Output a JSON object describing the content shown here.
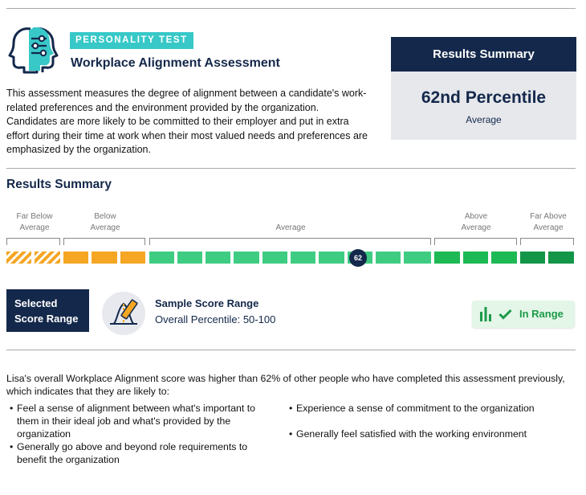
{
  "header": {
    "badge": "PERSONALITY TEST",
    "title": "Workplace Alignment Assessment",
    "description": "This assessment measures the degree of alignment between a candidate's work-related preferences and the environment provided by the organization. Candidates are more likely to be committed to their employer and put in extra effort during their time at work when their most valued needs and preferences are emphasized by the organization."
  },
  "summary": {
    "header": "Results Summary",
    "percentile": "62nd Percentile",
    "level": "Average"
  },
  "results": {
    "title": "Results Summary",
    "categories": {
      "far_below_1": "Far Below",
      "far_below_2": "Average",
      "below_1": "Below",
      "below_2": "Average",
      "average": "Average",
      "above_1": "Above",
      "above_2": "Average",
      "far_above_1": "Far Above",
      "far_above_2": "Average"
    },
    "score": "62"
  },
  "selected_range": {
    "label_line1": "Selected",
    "label_line2": "Score Range",
    "title": "Sample Score Range",
    "subtitle": "Overall Percentile: 50-100",
    "status": "In Range"
  },
  "details": {
    "paragraph": "Lisa's overall Workplace Alignment score was higher than 62% of other people who have completed this assessment previously, which indicates that they are likely to:",
    "bullets": [
      "Feel a sense of alignment between what's important to them in their ideal job and what's provided by the organization",
      "Generally go above and beyond role requirements to benefit the organization",
      "Experience a sense of commitment to the organization",
      "Generally feel satisfied with the working environment"
    ]
  },
  "colors": {
    "navy": "#14284b",
    "teal_badge": "#38c8c8",
    "orange": "#f5a623",
    "green": "#1db954",
    "in_range_text": "#1d9a4a"
  },
  "icons": {
    "header": "profiles-sliders-icon",
    "range": "bell-curve-ruler-icon",
    "status_chart": "bar-chart-icon",
    "status_check": "check-icon"
  }
}
